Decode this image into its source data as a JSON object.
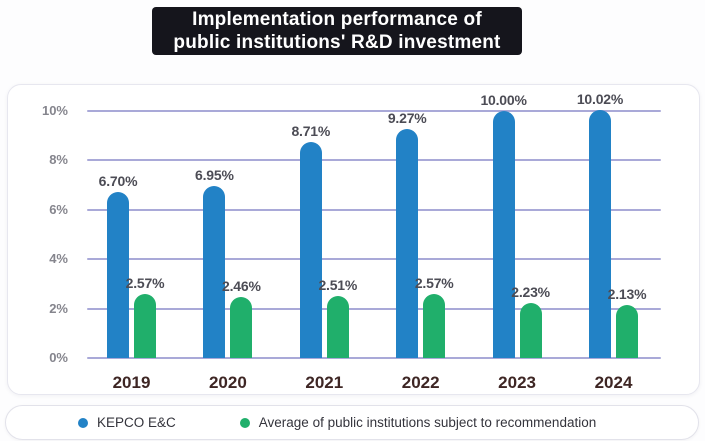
{
  "title": {
    "line1": "Implementation performance of",
    "line2": "public institutions' R&D investment"
  },
  "colors": {
    "title_bg": "#15151c",
    "title_text": "#ffffff",
    "blue": "#2282c6",
    "green": "#20af6b",
    "gridline": "#a9a9d8",
    "value_label": "#4c4c55",
    "y_tick": "#85858d",
    "year_label": "#3e2624"
  },
  "chart_data": {
    "type": "bar",
    "title": "Implementation performance of public institutions' R&D investment",
    "categories": [
      "2019",
      "2020",
      "2021",
      "2022",
      "2023",
      "2024"
    ],
    "series": [
      {
        "name": "KEPCO E&C",
        "color": "#2282c6",
        "values": [
          6.7,
          6.95,
          8.71,
          9.27,
          10.0,
          10.02
        ],
        "labels": [
          "6.70%",
          "6.95%",
          "8.71%",
          "9.27%",
          "10.00%",
          "10.02%"
        ]
      },
      {
        "name": "Average of public institutions subject to recommendation",
        "color": "#20af6b",
        "values": [
          2.57,
          2.46,
          2.51,
          2.57,
          2.23,
          2.13
        ],
        "labels": [
          "2.57%",
          "2.46%",
          "2.51%",
          "2.57%",
          "2.23%",
          "2.13%"
        ]
      }
    ],
    "xlabel": "",
    "ylabel": "",
    "ylim": [
      0,
      10
    ],
    "y_ticks": [
      "0%",
      "2%",
      "4%",
      "6%",
      "8%",
      "10%"
    ],
    "grid": true,
    "legend_position": "bottom"
  },
  "legend": {
    "items": [
      {
        "label": "KEPCO E&C",
        "color": "#2282c6"
      },
      {
        "label": "Average of public institutions subject to recommendation",
        "color": "#20af6b"
      }
    ]
  }
}
